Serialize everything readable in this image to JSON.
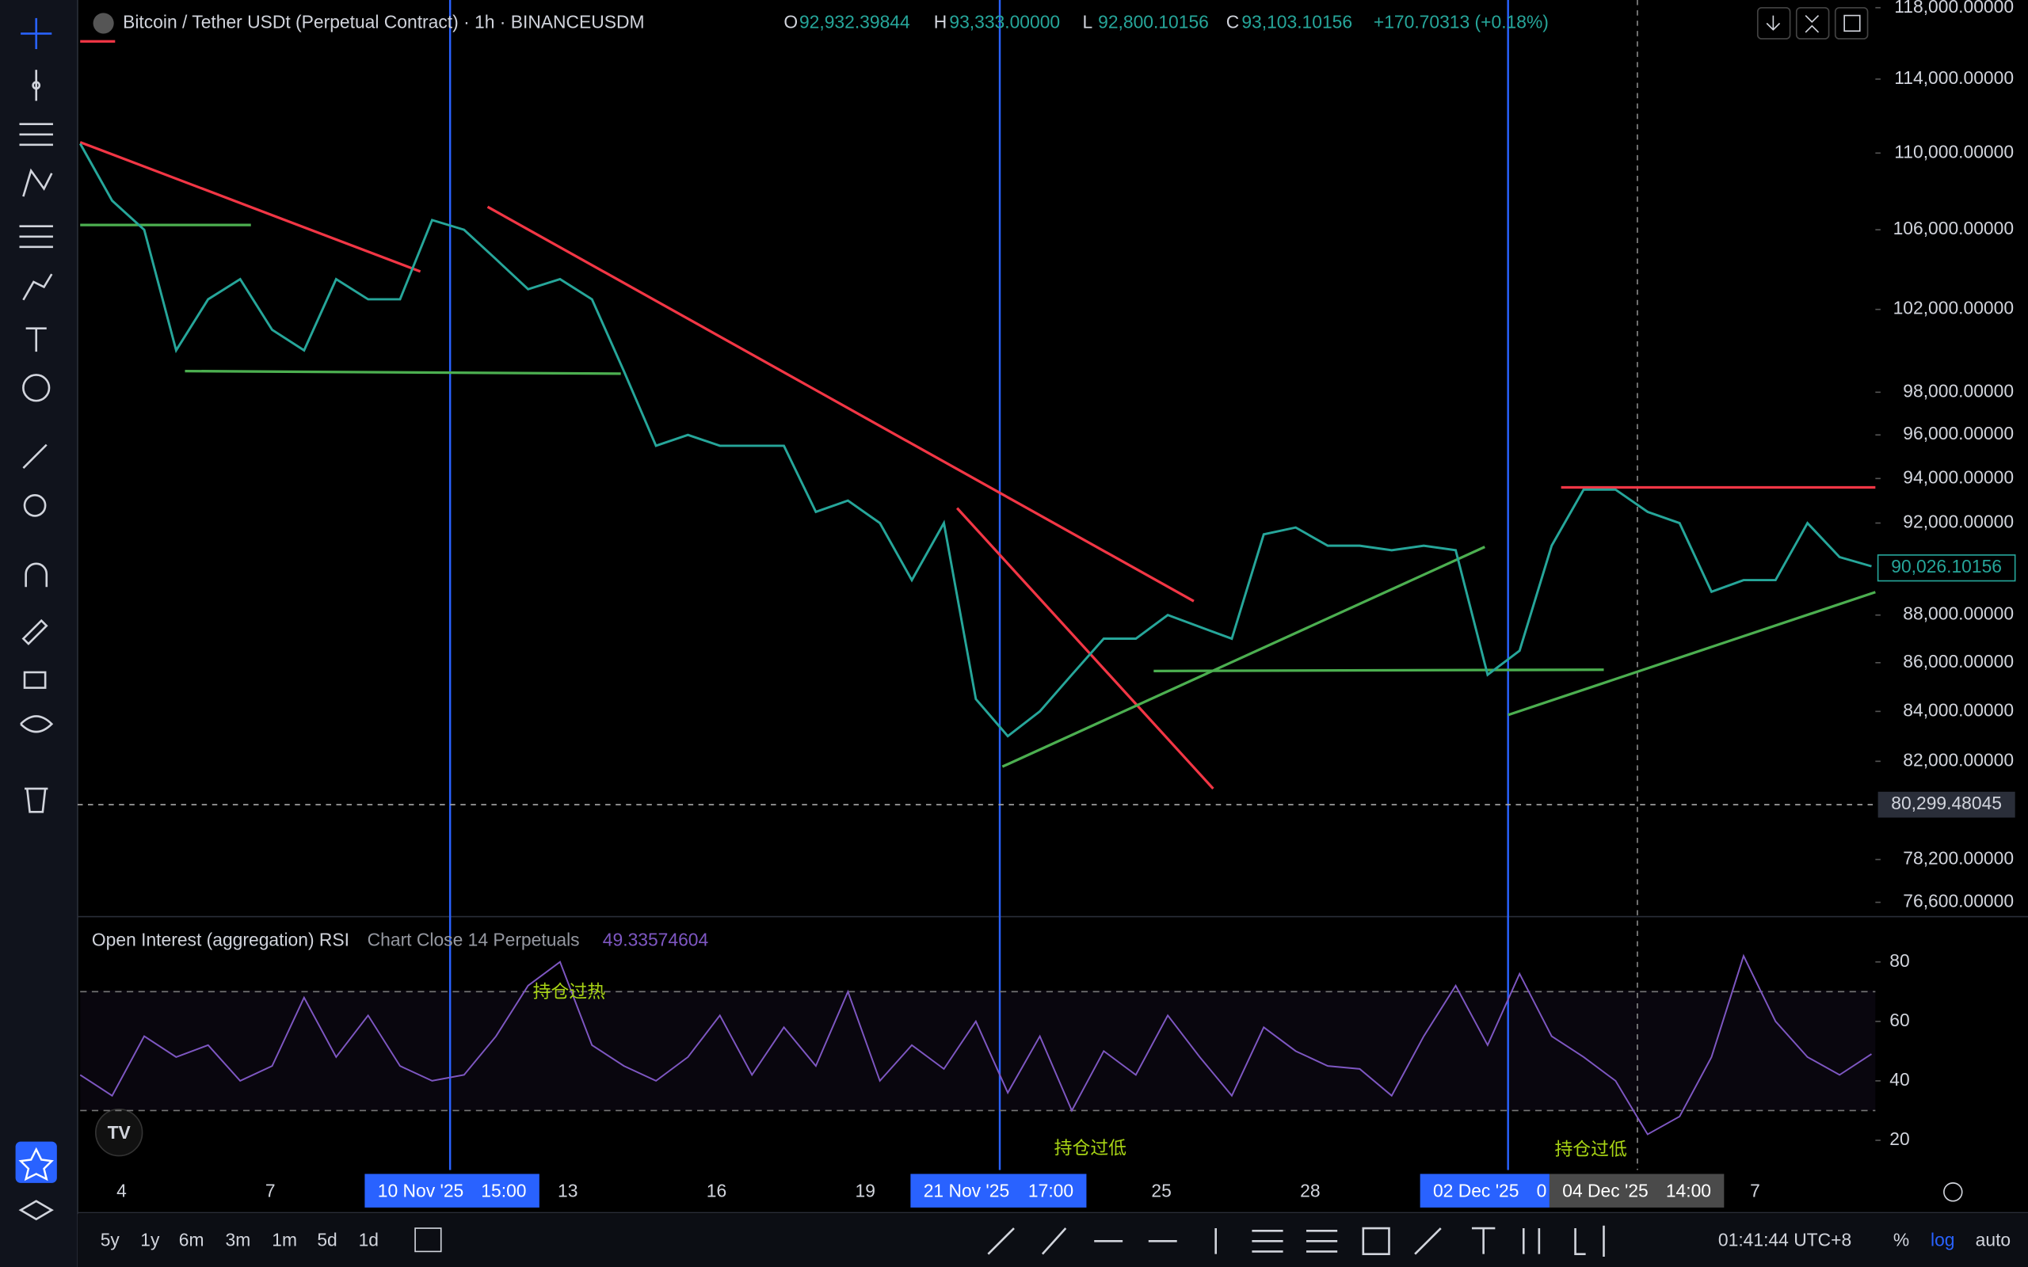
{
  "header": {
    "symbol": "Bitcoin / Tether USDt (Perpetual Contract) · 1h · BINANCEUSDM",
    "ohlc": [
      {
        "key": "O",
        "value": "92,932.39844"
      },
      {
        "key": "H",
        "value": "93,333.00000"
      },
      {
        "key": "L",
        "value": "92,800.10156"
      },
      {
        "key": "C",
        "value": "93,103.10156"
      }
    ],
    "change": "+170.70313 (+0.18%)"
  },
  "chart_data": [
    {
      "type": "line",
      "log_scale": true,
      "color": "#26a69a",
      "series": [
        {
          "values": [
            110500,
            107500,
            106000,
            100000,
            102500,
            103500,
            101000,
            100000,
            103500,
            102500,
            102500,
            106500,
            106000,
            104500,
            103000,
            103500,
            102500,
            99000,
            95500,
            96000,
            95500,
            95500,
            95500,
            92500,
            93000,
            92000,
            89500,
            92000,
            84500,
            83000,
            84000,
            85500,
            87000,
            87000,
            88000,
            87500,
            87000,
            91500,
            91800,
            91000,
            91000,
            90800,
            91000,
            90800,
            85500,
            86500,
            91000,
            93500,
            93500,
            92500,
            92000,
            89000,
            89500,
            89500,
            92000,
            90500,
            90100
          ]
        }
      ],
      "ylim": [
        76120,
        118440
      ],
      "yticks": [
        {
          "value": 118000,
          "label": "118,000.00000"
        },
        {
          "value": 114000,
          "label": "114,000.00000"
        },
        {
          "value": 110000,
          "label": "110,000.00000"
        },
        {
          "value": 106000,
          "label": "106,000.00000"
        },
        {
          "value": 102000,
          "label": "102,000.00000"
        },
        {
          "value": 98000,
          "label": "98,000.00000"
        },
        {
          "value": 96000,
          "label": "96,000.00000"
        },
        {
          "value": 94000,
          "label": "94,000.00000"
        },
        {
          "value": 92000,
          "label": "92,000.00000"
        },
        {
          "value": 88000,
          "label": "88,000.00000"
        },
        {
          "value": 86000,
          "label": "86,000.00000"
        },
        {
          "value": 84000,
          "label": "84,000.00000"
        },
        {
          "value": 82000,
          "label": "82,000.00000"
        },
        {
          "value": 78200,
          "label": "78,200.00000"
        },
        {
          "value": 76600,
          "label": "76,600.00000"
        }
      ],
      "last_price": {
        "value": 90026.10156,
        "label": "90,026.10156"
      },
      "marked_price": {
        "value": 80299.48045,
        "label": "80,299.48045"
      },
      "x_tick_labels": [
        "4",
        "7",
        "13",
        "16",
        "19",
        "25",
        "28",
        "7"
      ],
      "crosshair_labels": [
        [
          "10 Nov '25",
          "15:00"
        ],
        [
          "21 Nov '25",
          "17:00"
        ],
        [
          "02 Dec '25",
          "0"
        ],
        [
          "04 Dec '25",
          "14:00"
        ]
      ]
    },
    {
      "type": "line",
      "title": "Open Interest (aggregation) RSI",
      "subtitle": "Chart Close 14 Perpetuals",
      "legend_value": "49.33574604",
      "color": "#7e57c2",
      "series": [
        {
          "values": [
            42,
            35,
            55,
            48,
            52,
            40,
            45,
            68,
            48,
            62,
            45,
            40,
            42,
            55,
            72,
            80,
            52,
            45,
            40,
            48,
            62,
            42,
            58,
            45,
            70,
            40,
            52,
            44,
            60,
            36,
            55,
            30,
            50,
            42,
            62,
            48,
            35,
            58,
            50,
            45,
            44,
            35,
            55,
            72,
            52,
            76,
            55,
            48,
            40,
            22,
            28,
            48,
            82,
            60,
            48,
            42,
            49
          ]
        }
      ],
      "ylim": [
        10,
        94.8
      ],
      "yticks": [
        20,
        40,
        60,
        80
      ],
      "bands": [
        70,
        30
      ],
      "annotations": [
        "持仓过热",
        "持仓过低",
        "持仓过低"
      ]
    }
  ],
  "bottom_bar": {
    "ranges": [
      "5y",
      "1y",
      "6m",
      "3m",
      "1m",
      "5d",
      "1d"
    ],
    "clock": "01:41:44 UTC+8",
    "options": [
      "%",
      "log",
      "auto"
    ]
  }
}
